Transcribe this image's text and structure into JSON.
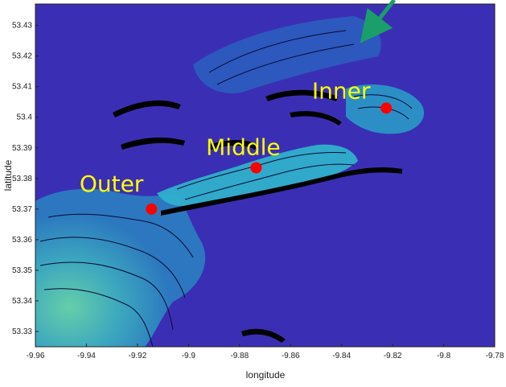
{
  "map": {
    "xlabel": "longitude",
    "ylabel": "latitude",
    "xlim": [
      -9.96,
      -9.78
    ],
    "ylim": [
      53.325,
      53.437
    ],
    "xticks": [
      -9.96,
      -9.94,
      -9.92,
      -9.9,
      -9.88,
      -9.86,
      -9.84,
      -9.82,
      -9.8,
      -9.78
    ],
    "yticks": [
      53.33,
      53.34,
      53.35,
      53.36,
      53.37,
      53.38,
      53.39,
      53.4,
      53.41,
      53.42,
      53.43
    ],
    "xtick_labels": [
      "-9.96",
      "-9.94",
      "-9.92",
      "-9.9",
      "-9.88",
      "-9.86",
      "-9.84",
      "-9.82",
      "-9.8",
      "-9.78"
    ],
    "ytick_labels": [
      "53.33",
      "53.34",
      "53.35",
      "53.36",
      "53.37",
      "53.38",
      "53.39",
      "53.4",
      "53.41",
      "53.42",
      "53.43"
    ],
    "colors": {
      "background": "#3a2fb4",
      "deep": "#2ea8c8",
      "shallow": "#4ac8b8",
      "land": "#000000",
      "marker": "#ff0000",
      "label": "#ffff00",
      "arrow": "#1a9e6a"
    },
    "sites": [
      {
        "name": "Outer",
        "lon": -9.9145,
        "lat": 53.37
      },
      {
        "name": "Middle",
        "lon": -9.8735,
        "lat": 53.3835
      },
      {
        "name": "Inner",
        "lon": -9.8225,
        "lat": 53.403
      }
    ],
    "arrow_icon": "arrow-down-left-icon"
  }
}
